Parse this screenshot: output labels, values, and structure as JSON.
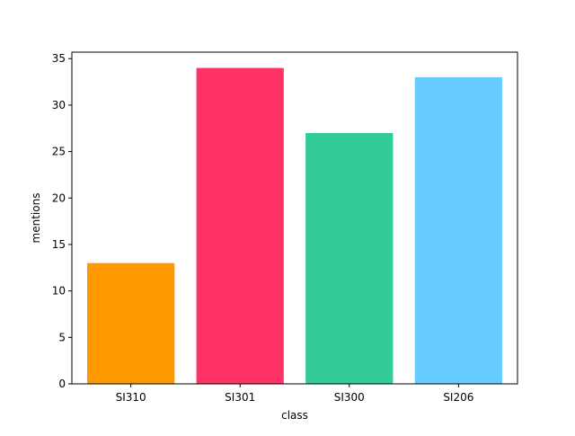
{
  "chart_data": {
    "type": "bar",
    "title": "",
    "xlabel": "class",
    "ylabel": "mentions",
    "categories": [
      "SI310",
      "SI301",
      "SI300",
      "SI206"
    ],
    "values": [
      13,
      34,
      27,
      33
    ],
    "colors": [
      "#ff9900",
      "#ff3366",
      "#33cc99",
      "#66ccff"
    ],
    "ylim": [
      0,
      35.7
    ],
    "yticks": [
      0,
      5,
      10,
      15,
      20,
      25,
      30,
      35
    ],
    "grid": false,
    "legend": "none"
  }
}
